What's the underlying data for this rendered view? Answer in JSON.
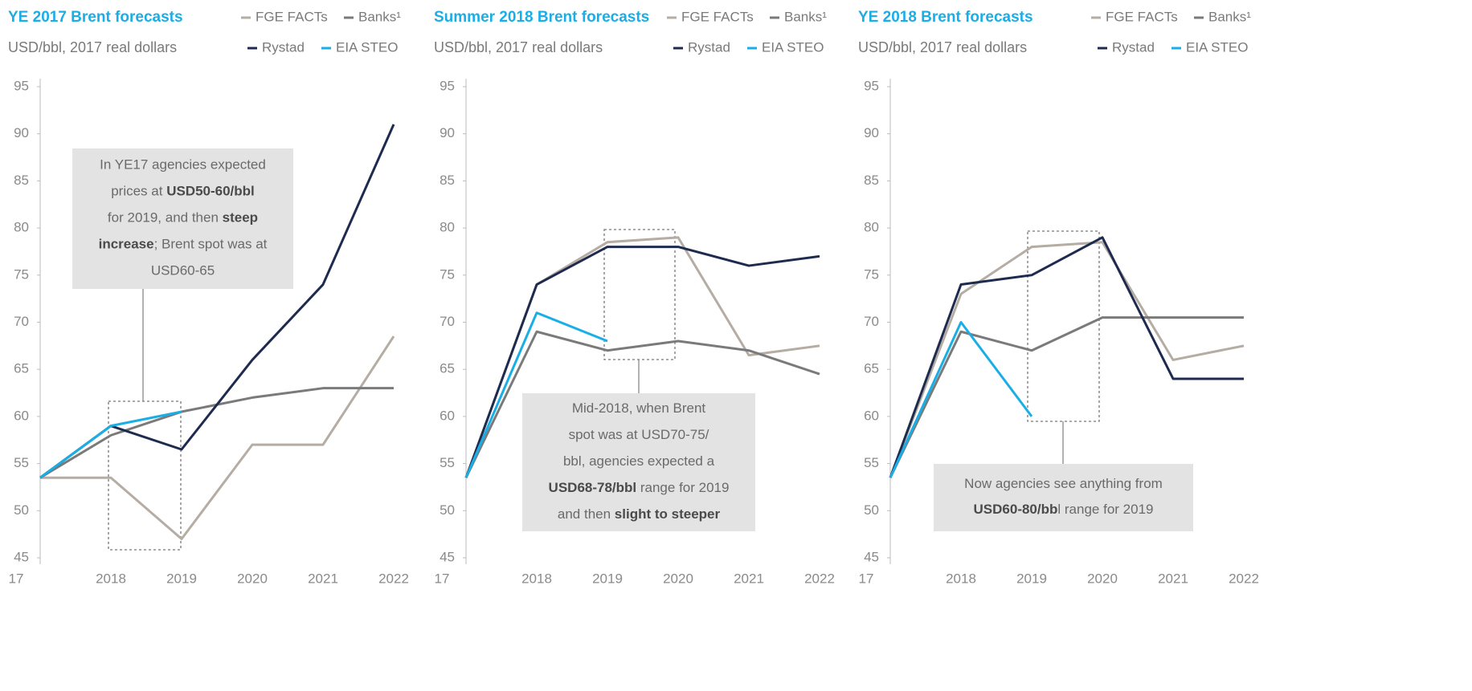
{
  "chart_data": [
    {
      "type": "line",
      "title": "YE 2017 Brent forecasts",
      "subtitle": "USD/bbl, 2017 real dollars",
      "categories": [
        "17",
        "2018",
        "2019",
        "2020",
        "2021",
        "2022"
      ],
      "ylim": [
        45,
        95
      ],
      "yticks": [
        45,
        50,
        55,
        60,
        65,
        70,
        75,
        80,
        85,
        90,
        95
      ],
      "series": [
        {
          "name": "FGE FACTs",
          "color": "#b5aca3",
          "values": [
            53.5,
            53.5,
            47,
            57,
            57,
            68.5
          ]
        },
        {
          "name": "Banks¹",
          "color": "#7a7a7a",
          "values": [
            53.5,
            58,
            60.5,
            62,
            63,
            63
          ]
        },
        {
          "name": "Rystad",
          "color": "#1e2b4f",
          "values": [
            53.5,
            59,
            56.5,
            66,
            74,
            91
          ]
        },
        {
          "name": "EIA STEO",
          "color": "#1aaee6",
          "values": [
            53.5,
            59,
            60.5,
            null,
            null,
            null
          ]
        }
      ],
      "annotation": [
        [
          {
            "text": "In YE17 agencies expected",
            "bold": false
          }
        ],
        [
          {
            "text": "prices at ",
            "bold": false
          },
          {
            "text": "USD50-60/bbl",
            "bold": true
          }
        ],
        [
          {
            "text": "for 2019, and then ",
            "bold": false
          },
          {
            "text": "steep",
            "bold": true
          }
        ],
        [
          {
            "text": "increase",
            "bold": true
          },
          {
            "text": "; Brent spot was at",
            "bold": false
          }
        ],
        [
          {
            "text": "USD60-65",
            "bold": false
          }
        ]
      ]
    },
    {
      "type": "line",
      "title": "Summer 2018 Brent forecasts",
      "subtitle": "USD/bbl, 2017 real dollars",
      "categories": [
        "17",
        "2018",
        "2019",
        "2020",
        "2021",
        "2022"
      ],
      "ylim": [
        45,
        95
      ],
      "yticks": [
        45,
        50,
        55,
        60,
        65,
        70,
        75,
        80,
        85,
        90,
        95
      ],
      "series": [
        {
          "name": "FGE FACTs",
          "color": "#b5aca3",
          "values": [
            53.5,
            74,
            78.5,
            79,
            66.5,
            67.5
          ]
        },
        {
          "name": "Banks¹",
          "color": "#7a7a7a",
          "values": [
            53.5,
            69,
            67,
            68,
            67,
            64.5
          ]
        },
        {
          "name": "Rystad",
          "color": "#1e2b4f",
          "values": [
            53.5,
            74,
            78,
            78,
            76,
            77
          ]
        },
        {
          "name": "EIA STEO",
          "color": "#1aaee6",
          "values": [
            53.5,
            71,
            68,
            null,
            null,
            null
          ]
        }
      ],
      "annotation": [
        [
          {
            "text": "Mid-2018, when Brent",
            "bold": false
          }
        ],
        [
          {
            "text": "spot was at USD70-75/",
            "bold": false
          }
        ],
        [
          {
            "text": "bbl, agencies expected a",
            "bold": false
          }
        ],
        [
          {
            "text": "USD68-78/bbl",
            "bold": true
          },
          {
            "text": " range for 2019",
            "bold": false
          }
        ],
        [
          {
            "text": "and then ",
            "bold": false
          },
          {
            "text": "slight to steeper",
            "bold": true
          }
        ]
      ]
    },
    {
      "type": "line",
      "title": "YE 2018 Brent forecasts",
      "subtitle": "USD/bbl, 2017 real dollars",
      "categories": [
        "17",
        "2018",
        "2019",
        "2020",
        "2021",
        "2022"
      ],
      "ylim": [
        45,
        95
      ],
      "yticks": [
        45,
        50,
        55,
        60,
        65,
        70,
        75,
        80,
        85,
        90,
        95
      ],
      "series": [
        {
          "name": "FGE FACTs",
          "color": "#b5aca3",
          "values": [
            53.5,
            73,
            78,
            78.5,
            66,
            67.5
          ]
        },
        {
          "name": "Banks¹",
          "color": "#7a7a7a",
          "values": [
            53.5,
            69,
            67,
            70.5,
            70.5,
            70.5
          ]
        },
        {
          "name": "Rystad",
          "color": "#1e2b4f",
          "values": [
            53.5,
            74,
            75,
            79,
            64,
            64
          ]
        },
        {
          "name": "EIA STEO",
          "color": "#1aaee6",
          "values": [
            53.5,
            70,
            60,
            null,
            null,
            null
          ]
        }
      ],
      "annotation": [
        [
          {
            "text": "Now agencies see anything from",
            "bold": false
          }
        ],
        [
          {
            "text": "USD60-80/bb",
            "bold": true
          },
          {
            "text": "l range for 2019",
            "bold": false
          }
        ]
      ]
    }
  ]
}
